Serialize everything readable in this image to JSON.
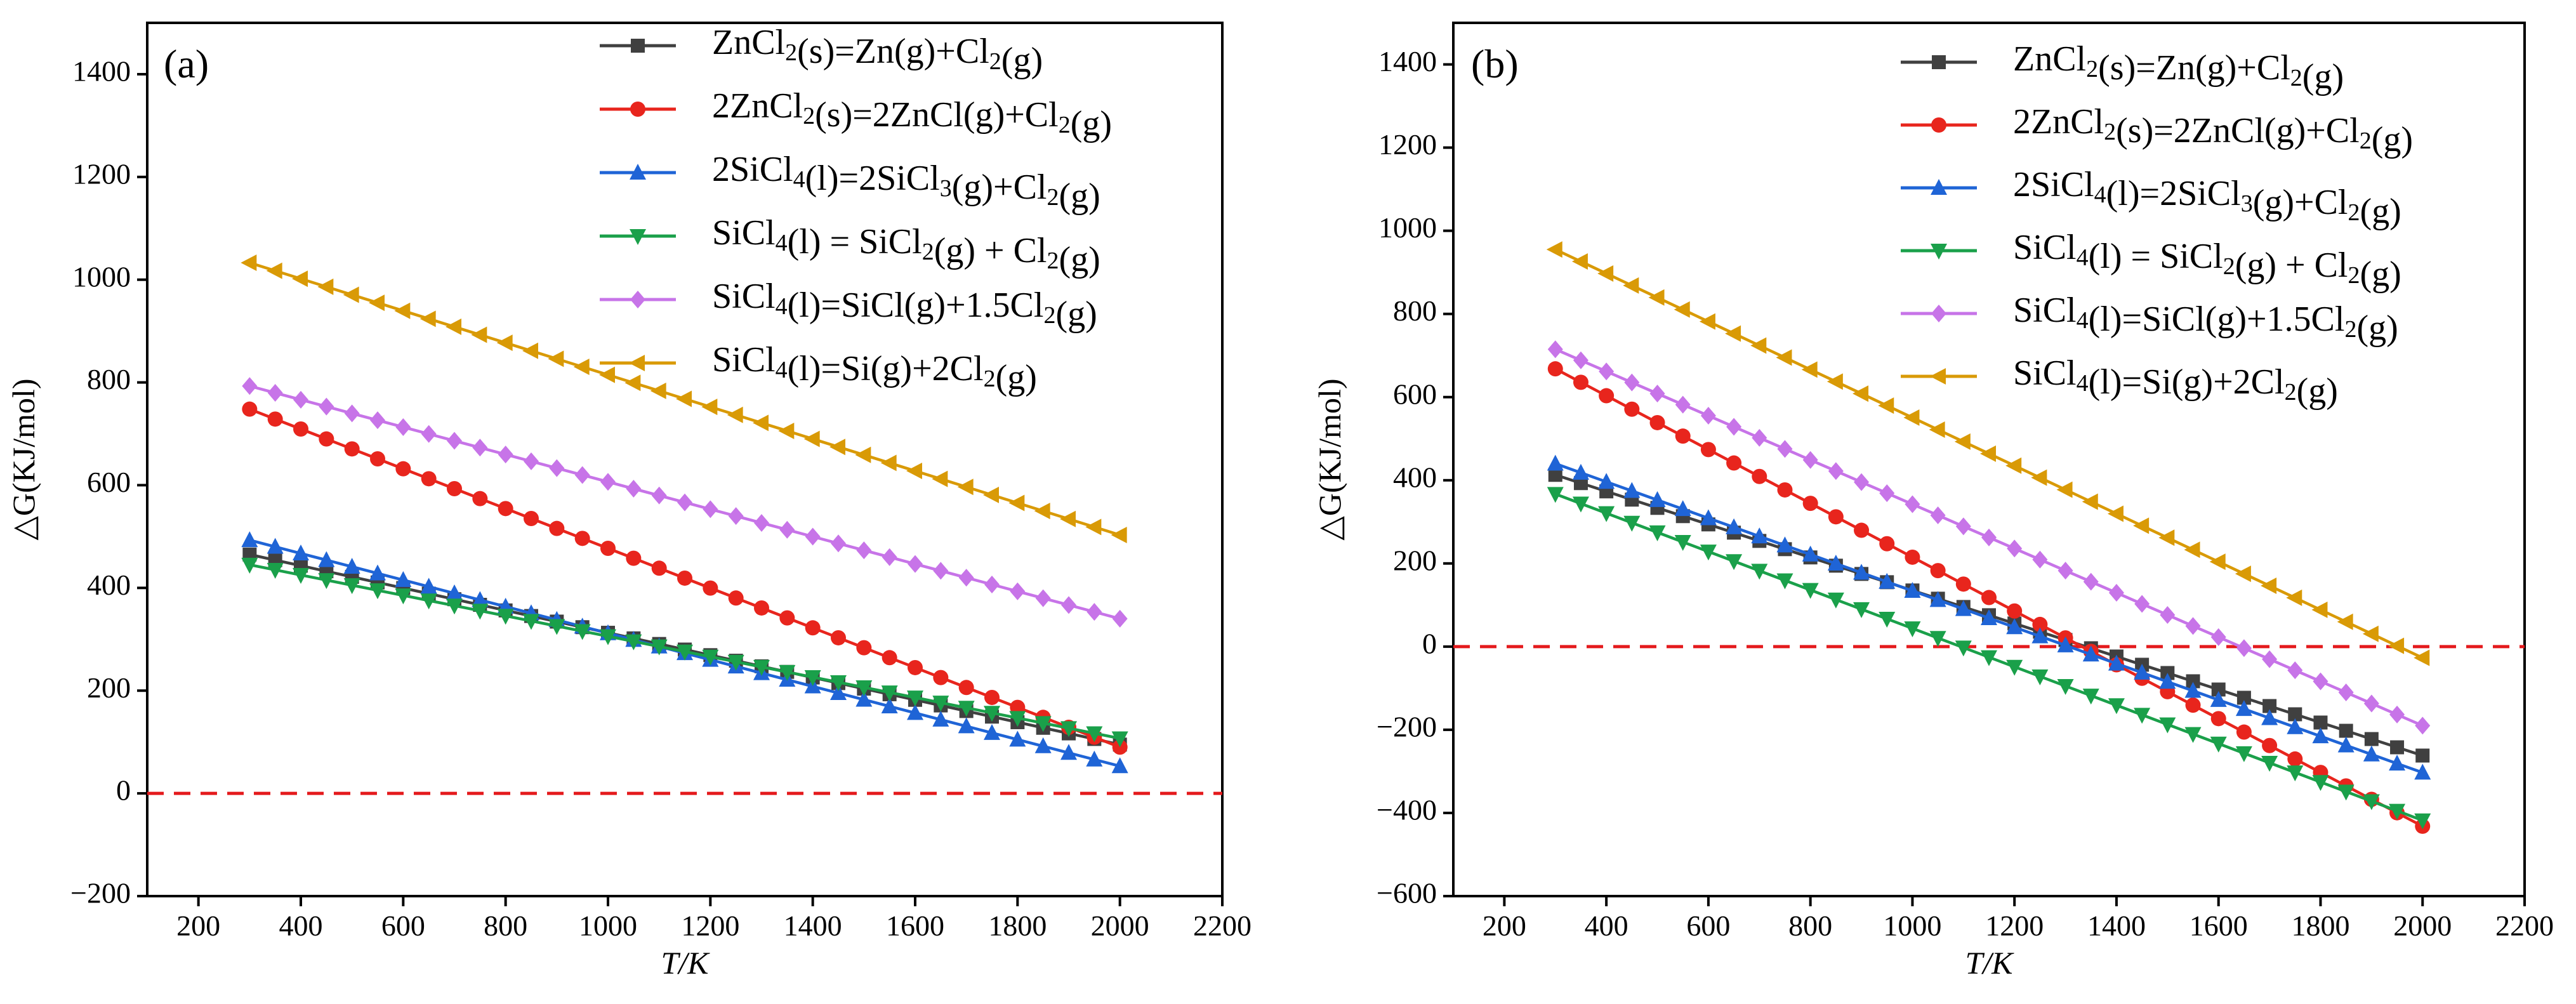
{
  "chart_data": [
    {
      "type": "line",
      "panel_label": "(a)",
      "xlabel": "T/K",
      "ylabel": "△G(KJ/mol)",
      "xlim": [
        100,
        2200
      ],
      "ylim": [
        -200,
        1500
      ],
      "xticks": [
        200,
        400,
        600,
        800,
        1000,
        1200,
        1400,
        1600,
        1800,
        2000,
        2200
      ],
      "yticks": [
        -200,
        0,
        200,
        400,
        600,
        800,
        1000,
        1200,
        1400
      ],
      "reference_line": {
        "y": 0,
        "style": "dashed",
        "color": "#e41a1c"
      },
      "x_start": 300,
      "x_end": 2000,
      "x_step": 50,
      "legend_position": "top-right",
      "series": [
        {
          "name": "ZnCl2(s)=Zn(g)+Cl2(g)",
          "color": "#404040",
          "marker": "square",
          "y_start": 465,
          "y_end": 95
        },
        {
          "name": "2ZnCl2(s)=2ZnCl(g)+Cl2(g)",
          "color": "#e8251d",
          "marker": "circle",
          "y_start": 748,
          "y_end": 90
        },
        {
          "name": "2SiCl4(l)=2SiCl3(g)+Cl2(g)",
          "color": "#1f64d6",
          "marker": "triangle-up",
          "y_start": 493,
          "y_end": 53
        },
        {
          "name": "SiCl4(l) = SiCl2(g) + Cl2(g)",
          "color": "#1aa04a",
          "marker": "triangle-down",
          "y_start": 445,
          "y_end": 107
        },
        {
          "name": "SiCl4(l)=SiCl(g)+1.5Cl2(g)",
          "color": "#c774e8",
          "marker": "diamond",
          "y_start": 793,
          "y_end": 340
        },
        {
          "name": "SiCl4(l)=Si(g)+2Cl2(g)",
          "color": "#d99a06",
          "marker": "triangle-left",
          "y_start": 1033,
          "y_end": 503
        }
      ]
    },
    {
      "type": "line",
      "panel_label": "(b)",
      "xlabel": "T/K",
      "ylabel": "△G(KJ/mol)",
      "xlim": [
        100,
        2200
      ],
      "ylim": [
        -600,
        1500
      ],
      "xticks": [
        200,
        400,
        600,
        800,
        1000,
        1200,
        1400,
        1600,
        1800,
        2000,
        2200
      ],
      "yticks": [
        -600,
        -400,
        -200,
        0,
        200,
        400,
        600,
        800,
        1000,
        1200,
        1400
      ],
      "reference_line": {
        "y": 0,
        "style": "dashed",
        "color": "#e41a1c"
      },
      "x_start": 300,
      "x_end": 2000,
      "x_step": 50,
      "legend_position": "top-right",
      "series": [
        {
          "name": "ZnCl2(s)=Zn(g)+Cl2(g)",
          "color": "#404040",
          "marker": "square",
          "y_start": 413,
          "y_end": -262
        },
        {
          "name": "2ZnCl2(s)=2ZnCl(g)+Cl2(g)",
          "color": "#e8251d",
          "marker": "circle",
          "y_start": 668,
          "y_end": -432
        },
        {
          "name": "2SiCl4(l)=2SiCl3(g)+Cl2(g)",
          "color": "#1f64d6",
          "marker": "triangle-up",
          "y_start": 440,
          "y_end": -303
        },
        {
          "name": "SiCl4(l) = SiCl2(g) + Cl2(g)",
          "color": "#1aa04a",
          "marker": "triangle-down",
          "y_start": 367,
          "y_end": -418
        },
        {
          "name": "SiCl4(l)=SiCl(g)+1.5Cl2(g)",
          "color": "#c774e8",
          "marker": "diamond",
          "y_start": 715,
          "y_end": -190
        },
        {
          "name": "SiCl4(l)=Si(g)+2Cl2(g)",
          "color": "#d99a06",
          "marker": "triangle-left",
          "y_start": 955,
          "y_end": -27
        }
      ]
    }
  ]
}
